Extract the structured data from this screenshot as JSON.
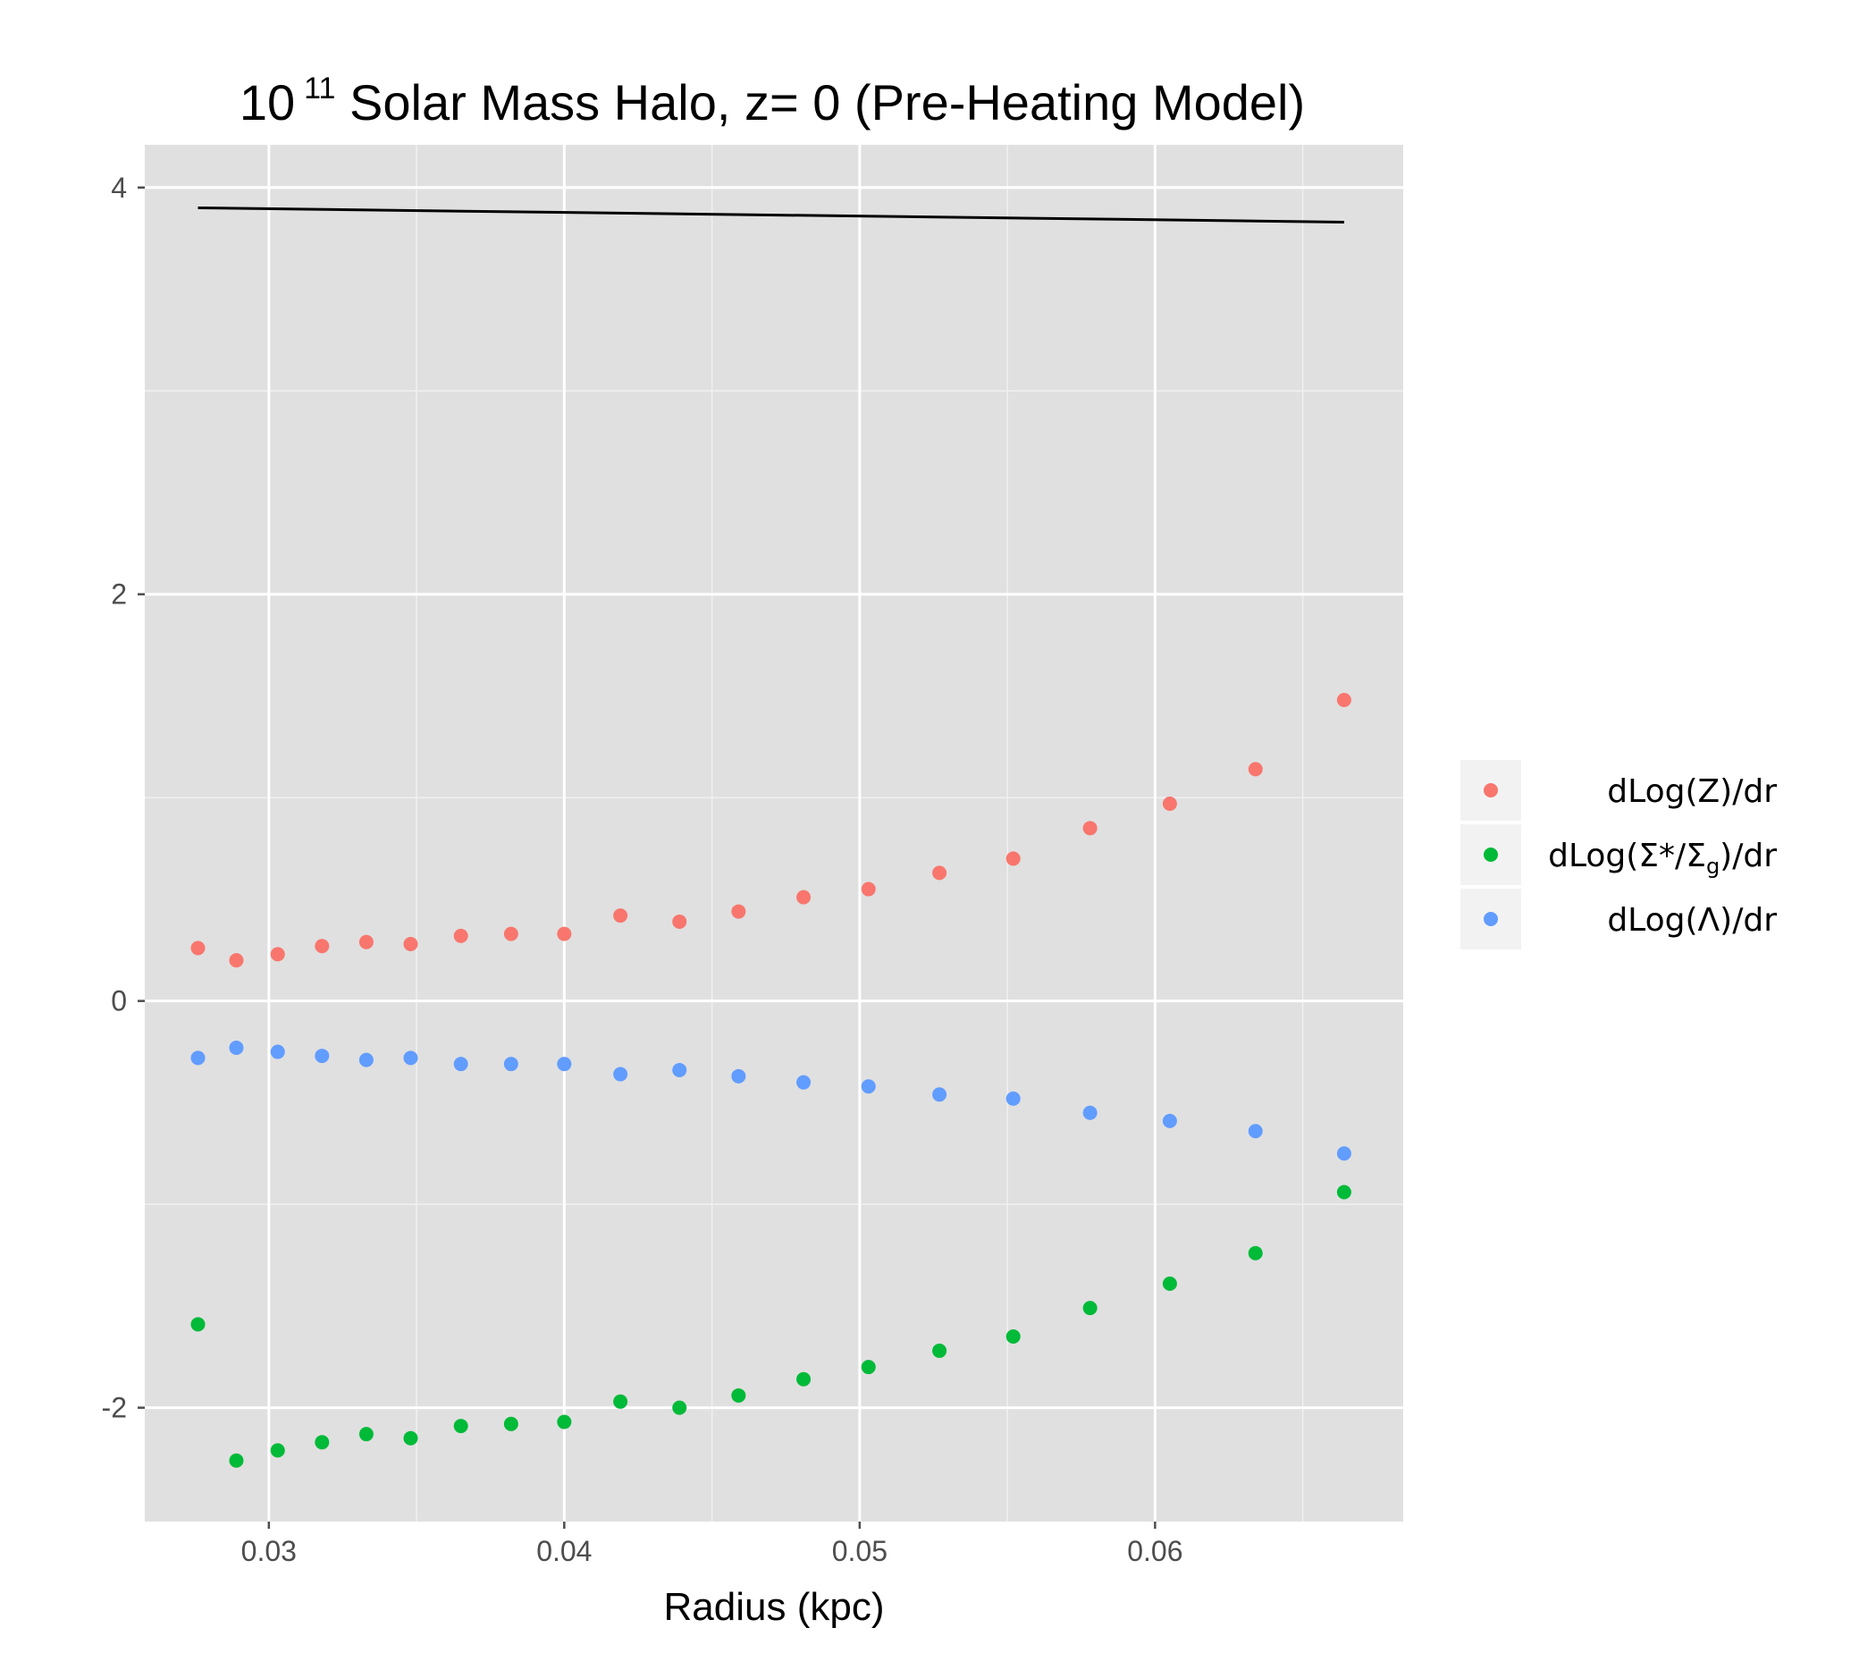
{
  "chart_data": {
    "type": "scatter",
    "title": {
      "prefix": "10",
      "superscript": "11",
      "suffix": " Solar Mass Halo, z= 0 (Pre-Heating Model)"
    },
    "xlabel": "Radius (kpc)",
    "ylabel": "",
    "xlim": [
      0.0258,
      0.0684
    ],
    "ylim": [
      -2.56,
      4.21
    ],
    "x_ticks": [
      0.03,
      0.04,
      0.05,
      0.06
    ],
    "x_tick_labels": [
      "0.03",
      "0.04",
      "0.05",
      "0.06"
    ],
    "y_ticks": [
      -2,
      0,
      2,
      4
    ],
    "y_tick_labels": [
      "-2",
      "0",
      "2",
      "4"
    ],
    "grid": true,
    "legend_position": "right",
    "x": [
      0.0276,
      0.0289,
      0.0303,
      0.0318,
      0.0333,
      0.0348,
      0.0365,
      0.0382,
      0.04,
      0.0419,
      0.0439,
      0.0459,
      0.0481,
      0.0503,
      0.0527,
      0.0552,
      0.0578,
      0.0605,
      0.0634,
      0.0664
    ],
    "series": [
      {
        "name": "dLog(Z)/dr",
        "color": "#F8766D",
        "values": [
          0.26,
          0.2,
          0.23,
          0.27,
          0.29,
          0.28,
          0.32,
          0.33,
          0.33,
          0.42,
          0.39,
          0.44,
          0.51,
          0.55,
          0.63,
          0.7,
          0.85,
          0.97,
          1.14,
          1.48
        ]
      },
      {
        "name": "dLog(Σ*/Σg)/dr",
        "color": "#00BA38",
        "values": [
          -1.59,
          -2.26,
          -2.21,
          -2.17,
          -2.13,
          -2.15,
          -2.09,
          -2.08,
          -2.07,
          -1.97,
          -2.0,
          -1.94,
          -1.86,
          -1.8,
          -1.72,
          -1.65,
          -1.51,
          -1.39,
          -1.24,
          -0.94
        ]
      },
      {
        "name": "dLog(Λ)/dr",
        "color": "#619CFF",
        "values": [
          -0.28,
          -0.23,
          -0.25,
          -0.27,
          -0.29,
          -0.28,
          -0.31,
          -0.31,
          -0.31,
          -0.36,
          -0.34,
          -0.37,
          -0.4,
          -0.42,
          -0.46,
          -0.48,
          -0.55,
          -0.59,
          -0.64,
          -0.75
        ]
      }
    ],
    "line": {
      "color": "#000000",
      "x": [
        0.0276,
        0.0664
      ],
      "y": [
        3.9,
        3.83
      ]
    },
    "legend": [
      {
        "pre": "dLog(",
        "main": "Σ",
        "sub": "",
        "mid": "",
        "sub2": "",
        "post": "",
        "text": "dLog(Z)/dr"
      },
      {
        "text": "dLog(Σ*/Σg)/dr"
      },
      {
        "text": "dLog(Λ)/dr"
      }
    ],
    "legend_labels": {
      "z": {
        "a": "dLog",
        "b": "(",
        "c": "Z",
        "d": ")",
        "e": "/dr"
      },
      "sigma": {
        "a": "dLog",
        "b": "(",
        "c": "Σ*",
        "d": "/",
        "e": "Σ",
        "f": "g",
        "g": ")",
        "h": "/dr"
      },
      "lambda": {
        "a": "dLog",
        "b": "(",
        "c": "Λ",
        "d": ")",
        "e": "/dr"
      }
    }
  }
}
